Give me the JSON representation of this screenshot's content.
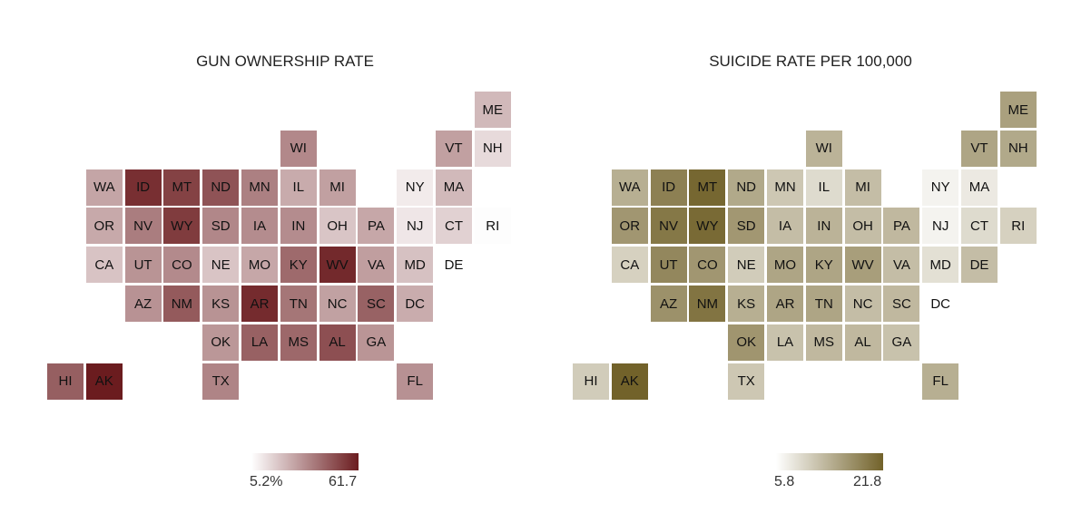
{
  "chart_data": [
    {
      "type": "heatmap",
      "title": "GUN OWNERSHIP RATE",
      "legend": {
        "min_label": "5.2%",
        "max_label": "61.7",
        "min": 5.2,
        "max": 61.7,
        "low_color": "#ffffff",
        "high_color": "#6b1c1f"
      },
      "states": [
        {
          "code": "ME",
          "value": 22.6
        },
        {
          "code": "WI",
          "value": 34.7
        },
        {
          "code": "VT",
          "value": 28.8
        },
        {
          "code": "NH",
          "value": 14.4
        },
        {
          "code": "WA",
          "value": 27.7
        },
        {
          "code": "ID",
          "value": 56.9
        },
        {
          "code": "MT",
          "value": 52.3
        },
        {
          "code": "ND",
          "value": 47.9
        },
        {
          "code": "MN",
          "value": 36.7
        },
        {
          "code": "IL",
          "value": 26.2
        },
        {
          "code": "MI",
          "value": 28.8
        },
        {
          "code": "NY",
          "value": 10.3
        },
        {
          "code": "MA",
          "value": 22.6
        },
        {
          "code": "OR",
          "value": 26.6
        },
        {
          "code": "NV",
          "value": 37.5
        },
        {
          "code": "WY",
          "value": 53.8
        },
        {
          "code": "SD",
          "value": 35.0
        },
        {
          "code": "IA",
          "value": 33.8
        },
        {
          "code": "IN",
          "value": 33.8
        },
        {
          "code": "OH",
          "value": 19.6
        },
        {
          "code": "PA",
          "value": 27.1
        },
        {
          "code": "NJ",
          "value": 11.3
        },
        {
          "code": "CT",
          "value": 16.6
        },
        {
          "code": "RI",
          "value": 5.8
        },
        {
          "code": "CA",
          "value": 20.1
        },
        {
          "code": "UT",
          "value": 31.9
        },
        {
          "code": "CO",
          "value": 34.3
        },
        {
          "code": "NE",
          "value": 19.8
        },
        {
          "code": "MO",
          "value": 27.1
        },
        {
          "code": "KY",
          "value": 42.4
        },
        {
          "code": "WV",
          "value": 58.5
        },
        {
          "code": "VA",
          "value": 29.3
        },
        {
          "code": "MD",
          "value": 20.7
        },
        {
          "code": "DE",
          "value": 5.2
        },
        {
          "code": "AZ",
          "value": 32.3
        },
        {
          "code": "NM",
          "value": 46.2
        },
        {
          "code": "KS",
          "value": 32.2
        },
        {
          "code": "AR",
          "value": 57.9
        },
        {
          "code": "TN",
          "value": 39.4
        },
        {
          "code": "NC",
          "value": 28.7
        },
        {
          "code": "SC",
          "value": 44.4
        },
        {
          "code": "DC",
          "value": 25.9
        },
        {
          "code": "OK",
          "value": 31.2
        },
        {
          "code": "LA",
          "value": 44.5
        },
        {
          "code": "MS",
          "value": 42.8
        },
        {
          "code": "AL",
          "value": 48.9
        },
        {
          "code": "GA",
          "value": 31.6
        },
        {
          "code": "HI",
          "value": 45.1
        },
        {
          "code": "AK",
          "value": 61.7
        },
        {
          "code": "TX",
          "value": 35.7
        },
        {
          "code": "FL",
          "value": 32.5
        }
      ]
    },
    {
      "type": "heatmap",
      "title": "SUICIDE RATE PER 100,000",
      "legend": {
        "min_label": "5.8",
        "max_label": "21.8",
        "min": 5.8,
        "max": 21.8,
        "low_color": "#ffffff",
        "high_color": "#72622a"
      },
      "states": [
        {
          "code": "ME",
          "value": 15.5
        },
        {
          "code": "WI",
          "value": 13.5
        },
        {
          "code": "VT",
          "value": 15.0
        },
        {
          "code": "NH",
          "value": 14.6
        },
        {
          "code": "WA",
          "value": 14.0
        },
        {
          "code": "ID",
          "value": 18.7
        },
        {
          "code": "MT",
          "value": 21.3
        },
        {
          "code": "ND",
          "value": 14.6
        },
        {
          "code": "MN",
          "value": 11.5
        },
        {
          "code": "IL",
          "value": 9.5
        },
        {
          "code": "MI",
          "value": 12.5
        },
        {
          "code": "NY",
          "value": 7.0
        },
        {
          "code": "MA",
          "value": 8.0
        },
        {
          "code": "OR",
          "value": 16.5
        },
        {
          "code": "NV",
          "value": 19.6
        },
        {
          "code": "WY",
          "value": 21.0
        },
        {
          "code": "SD",
          "value": 16.4
        },
        {
          "code": "IA",
          "value": 12.5
        },
        {
          "code": "IN",
          "value": 13.5
        },
        {
          "code": "OH",
          "value": 12.5
        },
        {
          "code": "PA",
          "value": 13.0
        },
        {
          "code": "NJ",
          "value": 7.0
        },
        {
          "code": "CT",
          "value": 9.5
        },
        {
          "code": "RI",
          "value": 10.5
        },
        {
          "code": "CA",
          "value": 10.5
        },
        {
          "code": "UT",
          "value": 18.0
        },
        {
          "code": "CO",
          "value": 16.5
        },
        {
          "code": "NE",
          "value": 11.0
        },
        {
          "code": "MO",
          "value": 15.0
        },
        {
          "code": "KY",
          "value": 15.0
        },
        {
          "code": "WV",
          "value": 15.7
        },
        {
          "code": "VA",
          "value": 12.5
        },
        {
          "code": "MD",
          "value": 9.0
        },
        {
          "code": "DE",
          "value": 12.5
        },
        {
          "code": "AZ",
          "value": 17.0
        },
        {
          "code": "NM",
          "value": 20.0
        },
        {
          "code": "KS",
          "value": 14.0
        },
        {
          "code": "AR",
          "value": 15.0
        },
        {
          "code": "TN",
          "value": 15.0
        },
        {
          "code": "NC",
          "value": 12.5
        },
        {
          "code": "SC",
          "value": 13.0
        },
        {
          "code": "DC",
          "value": 5.8
        },
        {
          "code": "OK",
          "value": 16.6
        },
        {
          "code": "LA",
          "value": 12.0
        },
        {
          "code": "MS",
          "value": 13.0
        },
        {
          "code": "AL",
          "value": 13.0
        },
        {
          "code": "GA",
          "value": 12.0
        },
        {
          "code": "HI",
          "value": 11.0
        },
        {
          "code": "AK",
          "value": 21.8
        },
        {
          "code": "TX",
          "value": 11.5
        },
        {
          "code": "FL",
          "value": 14.0
        }
      ]
    }
  ]
}
